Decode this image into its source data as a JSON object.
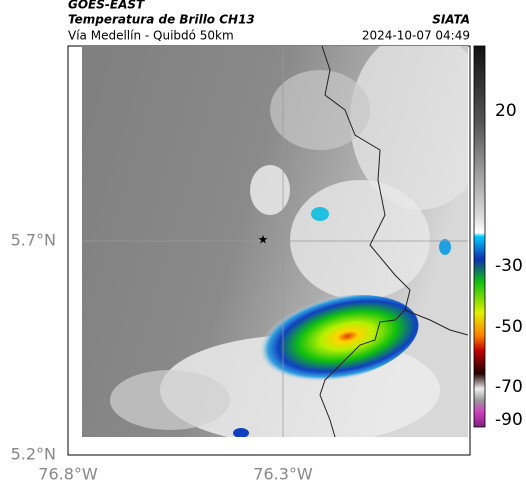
{
  "header": {
    "satellite": "GOES-EAST",
    "product": "Temperatura de Brillo CH13",
    "region": "Vía Medellín - Quibdó 50km",
    "source": "SIATA",
    "timestamp": "2024-10-07 04:49"
  },
  "map": {
    "lat_labels": [
      "5.7°N",
      "5.2°N"
    ],
    "lon_labels": [
      "76.8°W",
      "76.3°W"
    ]
  },
  "colorbar": {
    "tick_labels": [
      "20",
      "-30",
      "-50",
      "-70",
      "-90"
    ]
  }
}
